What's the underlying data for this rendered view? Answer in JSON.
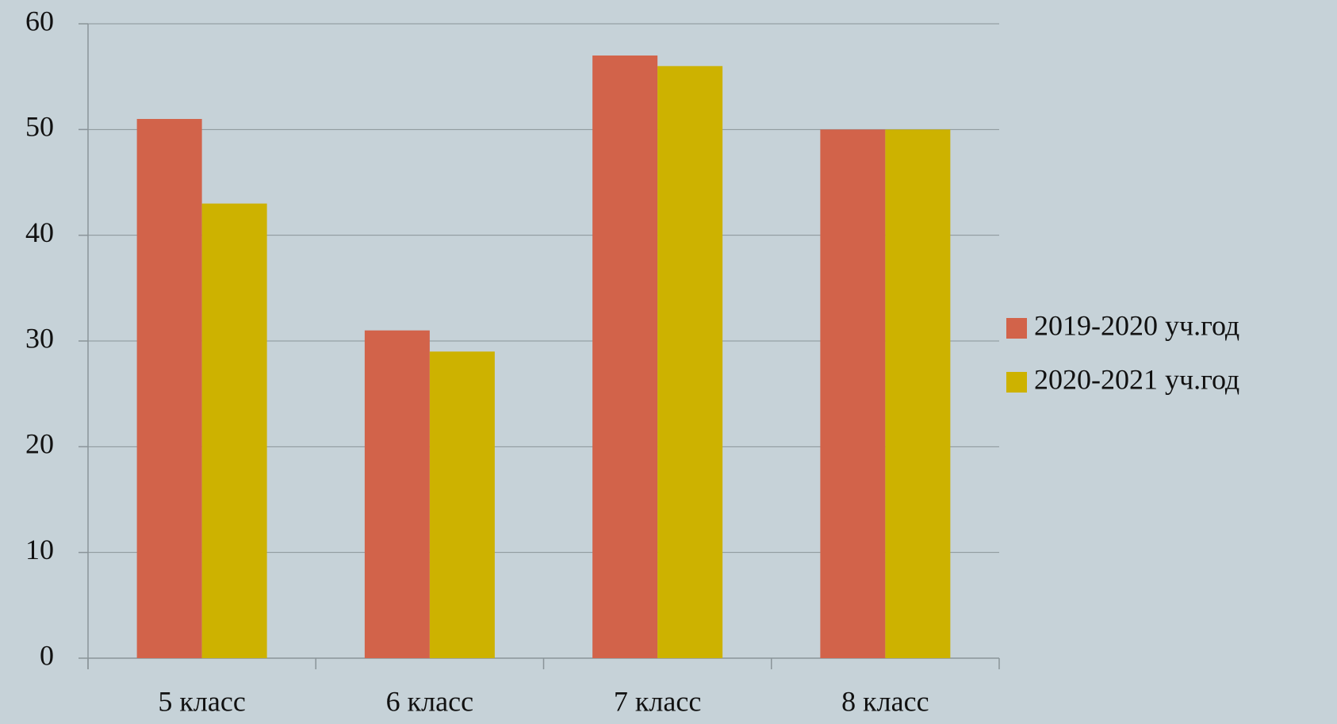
{
  "chart_data": {
    "type": "bar",
    "categories": [
      "5 класс",
      "6 класс",
      "7 класс",
      "8 класс"
    ],
    "series": [
      {
        "name": "2019-2020 уч.год",
        "color": "#d2634a",
        "values": [
          51,
          31,
          57,
          50
        ]
      },
      {
        "name": "2020-2021 уч.год",
        "color": "#cdb200",
        "values": [
          43,
          29,
          56,
          50
        ]
      }
    ],
    "ylim": [
      0,
      60
    ],
    "yticks": [
      0,
      10,
      20,
      30,
      40,
      50,
      60
    ],
    "grid": true,
    "legend": "right"
  }
}
